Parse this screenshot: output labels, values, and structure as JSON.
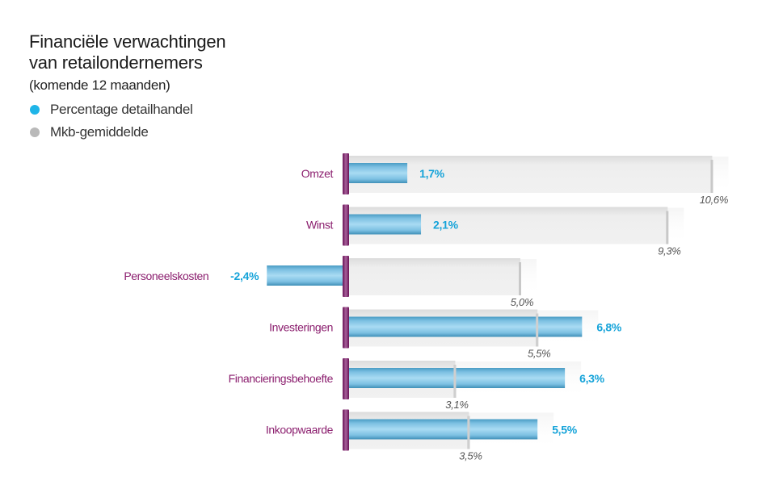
{
  "chart_data": {
    "type": "bar",
    "orientation": "horizontal",
    "title": "Financiële verwachtingen van retailondernemers",
    "title_lines": [
      "Financiële verwachtingen",
      "van retailondernemers"
    ],
    "subtitle": "(komende 12 maanden)",
    "xlabel": "",
    "ylabel": "",
    "unit": "%",
    "xlim": [
      -2.4,
      10.6
    ],
    "grid": false,
    "legend_position": "top-left",
    "categories": [
      "Omzet",
      "Winst",
      "Personeelskosten",
      "Investeringen",
      "Financieringsbehoefte",
      "Inkoopwaarde"
    ],
    "series": [
      {
        "name": "Percentage detailhandel",
        "color": "#1fb5e8",
        "values": [
          1.7,
          2.1,
          -2.4,
          6.8,
          6.3,
          5.5
        ],
        "labels": [
          "1,7%",
          "2,1%",
          "-2,4%",
          "6,8%",
          "6,3%",
          "5,5%"
        ]
      },
      {
        "name": "Mkb-gemiddelde",
        "color": "#b9b9b9",
        "values": [
          10.6,
          9.3,
          5.0,
          5.5,
          3.1,
          3.5
        ],
        "labels": [
          "10,6%",
          "9,3%",
          "5,0%",
          "5,5%",
          "3,1%",
          "3,5%"
        ]
      }
    ]
  },
  "colors": {
    "category_label": "#8b1e6e",
    "zero_axis": "#7a1a63",
    "value_label": "#15a3d9",
    "avg_label": "#555555"
  }
}
